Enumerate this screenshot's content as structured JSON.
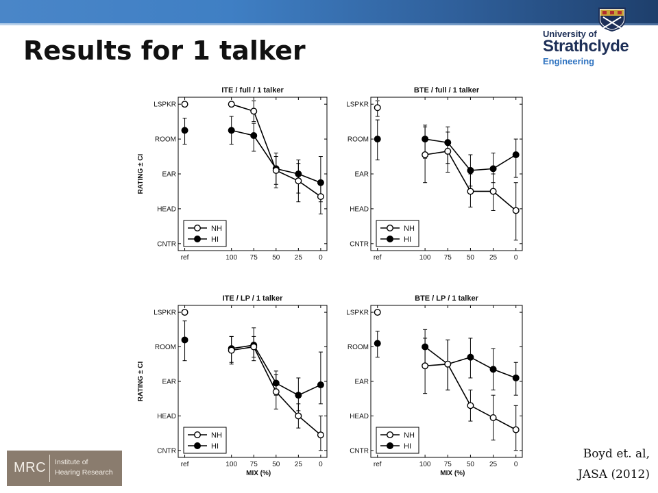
{
  "slide": {
    "title": "Results for 1 talker",
    "citation_line1": "Boyd et. al,",
    "citation_line2": "JASA (2012)"
  },
  "logo": {
    "line1": "University of",
    "line2": "Strathclyde",
    "line3": "Engineering"
  },
  "mrc_logo": {
    "abbr": "MRC",
    "line1": "Institute of",
    "line2": "Hearing Research"
  },
  "colors": {
    "header_bar": "#3f7fc4",
    "mrc_box": "#8a7c6e",
    "series": "#000000"
  },
  "chart_data": [
    {
      "type": "line",
      "title": "ITE / full / 1 talker",
      "xlabel": "",
      "ylabel": "RATING ± CI",
      "categories": [
        "ref",
        "100",
        "75",
        "50",
        "25",
        "0"
      ],
      "ylevels": [
        "LSPKR",
        "ROOM",
        "EAR",
        "HEAD",
        "CNTR"
      ],
      "ylim": [
        -0.2,
        4.2
      ],
      "series": [
        {
          "name": "NH",
          "marker": "open",
          "values": [
            4.0,
            4.0,
            3.8,
            2.1,
            1.8,
            1.35
          ],
          "ci_low": [
            null,
            null,
            3.5,
            1.7,
            1.2,
            0.85
          ],
          "ci_high": [
            null,
            null,
            4.1,
            2.5,
            2.3,
            1.8
          ]
        },
        {
          "name": "HI",
          "marker": "filled",
          "values": [
            3.25,
            3.25,
            3.1,
            2.15,
            2.0,
            1.75
          ],
          "ci_low": [
            2.85,
            2.85,
            2.65,
            1.6,
            1.45,
            1.2
          ],
          "ci_high": [
            3.6,
            3.65,
            3.45,
            2.6,
            2.4,
            2.5
          ]
        }
      ]
    },
    {
      "type": "line",
      "title": "BTE / full / 1 talker",
      "xlabel": "",
      "ylabel": "",
      "categories": [
        "ref",
        "100",
        "75",
        "50",
        "25",
        "0"
      ],
      "ylevels": [
        "LSPKR",
        "ROOM",
        "EAR",
        "HEAD",
        "CNTR"
      ],
      "ylim": [
        -0.2,
        4.2
      ],
      "series": [
        {
          "name": "NH",
          "marker": "open",
          "values": [
            3.9,
            2.55,
            2.65,
            1.5,
            1.5,
            0.95
          ],
          "ci_low": [
            3.65,
            1.75,
            2.05,
            1.05,
            0.95,
            0.1
          ],
          "ci_high": [
            4.1,
            3.35,
            3.2,
            2.0,
            2.0,
            1.75
          ]
        },
        {
          "name": "HI",
          "marker": "filled",
          "values": [
            3.0,
            3.0,
            2.9,
            2.1,
            2.15,
            2.55
          ],
          "ci_low": [
            2.4,
            2.45,
            2.3,
            1.65,
            1.75,
            1.9
          ],
          "ci_high": [
            3.55,
            3.4,
            3.35,
            2.55,
            2.6,
            3.0
          ]
        }
      ]
    },
    {
      "type": "line",
      "title": "ITE / LP / 1 talker",
      "xlabel": "MIX (%)",
      "ylabel": "RATING ± CI",
      "categories": [
        "ref",
        "100",
        "75",
        "50",
        "25",
        "0"
      ],
      "ylevels": [
        "LSPKR",
        "ROOM",
        "EAR",
        "HEAD",
        "CNTR"
      ],
      "ylim": [
        -0.2,
        4.2
      ],
      "series": [
        {
          "name": "NH",
          "marker": "open",
          "values": [
            4.0,
            2.9,
            3.0,
            1.7,
            1.0,
            0.45
          ],
          "ci_low": [
            null,
            2.5,
            2.7,
            1.2,
            0.65,
            0.0
          ],
          "ci_high": [
            null,
            3.3,
            3.3,
            2.2,
            1.35,
            1.0
          ]
        },
        {
          "name": "HI",
          "marker": "filled",
          "values": [
            3.2,
            2.95,
            3.05,
            1.95,
            1.6,
            1.9
          ],
          "ci_low": [
            2.6,
            2.55,
            2.6,
            1.6,
            1.15,
            1.35
          ],
          "ci_high": [
            3.75,
            3.3,
            3.55,
            2.3,
            2.1,
            2.85
          ]
        }
      ]
    },
    {
      "type": "line",
      "title": "BTE / LP / 1 talker",
      "xlabel": "MIX (%)",
      "ylabel": "",
      "categories": [
        "ref",
        "100",
        "75",
        "50",
        "25",
        "0"
      ],
      "ylevels": [
        "LSPKR",
        "ROOM",
        "EAR",
        "HEAD",
        "CNTR"
      ],
      "ylim": [
        -0.2,
        4.2
      ],
      "series": [
        {
          "name": "NH",
          "marker": "open",
          "values": [
            4.0,
            2.45,
            2.5,
            1.3,
            0.95,
            0.6
          ],
          "ci_low": [
            null,
            1.65,
            1.75,
            0.85,
            0.3,
            0.0
          ],
          "ci_high": [
            null,
            3.25,
            3.2,
            1.75,
            1.6,
            1.3
          ]
        },
        {
          "name": "HI",
          "marker": "filled",
          "values": [
            3.1,
            3.0,
            2.5,
            2.7,
            2.35,
            2.1
          ],
          "ci_low": [
            2.7,
            2.5,
            1.75,
            2.1,
            1.75,
            1.6
          ],
          "ci_high": [
            3.45,
            3.5,
            3.2,
            3.25,
            2.95,
            2.55
          ]
        }
      ]
    }
  ]
}
